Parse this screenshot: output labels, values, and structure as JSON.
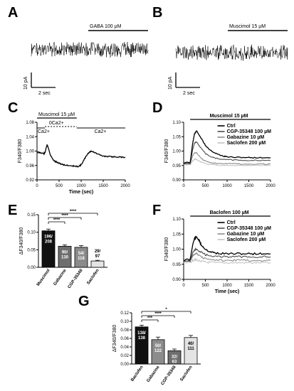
{
  "colors": {
    "black": "#000000",
    "dark_gray": "#4d4d4d",
    "gray": "#8c8c8c",
    "light_gray": "#c4c4c4",
    "bar_black": "#111111",
    "bar_gray1": "#6e6e6e",
    "bar_gray2": "#8a8a8a",
    "bar_light": "#e4e4e4"
  },
  "panel_labels": {
    "A": "A",
    "B": "B",
    "C": "C",
    "D": "D",
    "E": "E",
    "F": "F",
    "G": "G"
  },
  "trace_a": {
    "drug": "GABA 100 µM",
    "scale_y": "10 pA",
    "scale_x": "2 sec"
  },
  "trace_b": {
    "drug": "Muscimol 15 µM",
    "scale_y": "10 pA",
    "scale_x": "2 sec"
  },
  "chart_data": [
    {
      "panel": "C",
      "type": "line",
      "xlabel": "Time (sec)",
      "ylabel": "F340/F380",
      "xlim": [
        0,
        2000
      ],
      "ylim": [
        0.92,
        1.08
      ],
      "xticks": [
        0,
        500,
        1000,
        1500,
        2000
      ],
      "yticks": [
        "0.92",
        "0.96",
        "1.00",
        "1.04",
        "1.08"
      ],
      "annotations": {
        "drug": "Muscimol 15 µM",
        "zero_ca": "0Ca2+",
        "ca_left": "Ca2+",
        "ca_right": "Ca2+"
      },
      "series": [
        {
          "color": "#000000",
          "x": [
            0,
            50,
            100,
            150,
            180,
            200,
            230,
            260,
            300,
            350,
            400,
            450,
            500,
            550,
            600,
            700,
            800,
            850,
            900,
            950,
            1000,
            1050,
            1100,
            1150,
            1200,
            1250,
            1300,
            1400,
            1500,
            1600,
            1700,
            1800,
            1900,
            2000
          ],
          "y": [
            0.997,
            0.996,
            0.995,
            0.993,
            0.995,
            1.005,
            1.018,
            1.008,
            0.99,
            0.978,
            0.972,
            0.969,
            0.966,
            0.964,
            0.962,
            0.96,
            0.959,
            0.958,
            0.957,
            0.958,
            0.962,
            0.972,
            0.983,
            0.993,
            0.998,
            1.0,
            0.996,
            0.99,
            0.986,
            0.985,
            0.984,
            0.984,
            0.983,
            0.983
          ]
        }
      ]
    },
    {
      "panel": "D",
      "type": "line",
      "ylabel": "F340/F380",
      "xlim": [
        0,
        2000
      ],
      "ylim": [
        0.9,
        1.1
      ],
      "xticks": [
        0,
        500,
        1000,
        1500,
        2000
      ],
      "yticks": [
        "0.90",
        "0.95",
        "1.00",
        "1.05",
        "1.10"
      ],
      "annotations": {
        "drug": "Muscimol 15 µM"
      },
      "series": [
        {
          "name": "Ctrl",
          "color": "#000000",
          "x": [
            0,
            150,
            200,
            250,
            300,
            400,
            500,
            600,
            700,
            800,
            900,
            1000,
            1200,
            1400,
            1600,
            1800,
            2000
          ],
          "y": [
            0.96,
            0.96,
            1.02,
            1.06,
            1.07,
            1.045,
            1.02,
            1.005,
            0.995,
            0.988,
            0.983,
            0.98,
            0.978,
            0.978,
            0.977,
            0.977,
            0.977
          ]
        },
        {
          "name": "CGP-35348 100 µM",
          "color": "#4d4d4d",
          "x": [
            0,
            150,
            200,
            250,
            300,
            400,
            500,
            600,
            700,
            800,
            1000,
            1200,
            1400,
            1600,
            1800,
            2000
          ],
          "y": [
            0.958,
            0.958,
            1.0,
            1.028,
            1.032,
            1.01,
            0.992,
            0.982,
            0.977,
            0.973,
            0.97,
            0.969,
            0.968,
            0.968,
            0.967,
            0.967
          ]
        },
        {
          "name": "Gabazine 10 µM",
          "color": "#8c8c8c",
          "x": [
            0,
            150,
            200,
            250,
            300,
            400,
            500,
            600,
            700,
            800,
            1000,
            1200,
            1400,
            1600,
            1800,
            2000
          ],
          "y": [
            0.955,
            0.955,
            0.98,
            0.995,
            0.993,
            0.975,
            0.965,
            0.96,
            0.958,
            0.957,
            0.956,
            0.956,
            0.955,
            0.955,
            0.955,
            0.955
          ]
        },
        {
          "name": "Saclofen 200 µM",
          "color": "#c4c4c4",
          "x": [
            0,
            150,
            200,
            250,
            300,
            400,
            500,
            600,
            700,
            800,
            1000,
            1200,
            1400,
            1600,
            1800,
            2000
          ],
          "y": [
            0.952,
            0.952,
            0.965,
            0.972,
            0.97,
            0.962,
            0.956,
            0.953,
            0.952,
            0.951,
            0.95,
            0.95,
            0.95,
            0.95,
            0.95,
            0.95
          ]
        }
      ]
    },
    {
      "panel": "E",
      "type": "bar",
      "ylabel": "ΔF340/F380",
      "ylim": [
        0,
        0.15
      ],
      "yticks": [
        "0.00",
        "0.05",
        "0.10",
        "0.15"
      ],
      "categories": [
        "Muscimol",
        "Gabazine",
        "CGP-35348",
        "Saclofen"
      ],
      "values": [
        0.104,
        0.06,
        0.057,
        0.018
      ],
      "errors": [
        0.005,
        0.004,
        0.005,
        0.002
      ],
      "bar_colors": [
        "#111111",
        "#6e6e6e",
        "#8a8a8a",
        "#e4e4e4"
      ],
      "bar_labels": [
        [
          "196/",
          "208"
        ],
        [
          "90/",
          "130"
        ],
        [
          "54/",
          "118"
        ],
        [
          "29/",
          "97"
        ]
      ],
      "label_inside": [
        true,
        true,
        true,
        false
      ],
      "significance": [
        {
          "from": 0,
          "to": 3,
          "label": "****"
        },
        {
          "from": 0,
          "to": 2,
          "label": "****"
        },
        {
          "from": 0,
          "to": 1,
          "label": "****"
        }
      ]
    },
    {
      "panel": "F",
      "type": "line",
      "xlabel": "Time (sec)",
      "ylabel": "F340/F380",
      "xlim": [
        0,
        2000
      ],
      "ylim": [
        0.9,
        1.1
      ],
      "xticks": [
        0,
        500,
        1000,
        1500,
        2000
      ],
      "yticks": [
        "0.90",
        "0.95",
        "1.00",
        "1.05",
        "1.10"
      ],
      "annotations": {
        "drug": "Baclofen 100 µM"
      },
      "series": [
        {
          "name": "Ctrl",
          "color": "#000000",
          "x": [
            0,
            150,
            200,
            250,
            300,
            350,
            400,
            500,
            600,
            700,
            800,
            1000,
            1200,
            1400,
            1600,
            1800,
            2000
          ],
          "y": [
            0.965,
            0.965,
            1.01,
            1.035,
            1.04,
            1.03,
            1.015,
            1.0,
            0.992,
            0.988,
            0.986,
            0.985,
            0.985,
            0.985,
            0.985,
            0.985,
            0.985
          ]
        },
        {
          "name": "CGP-35348 100 µM",
          "color": "#4d4d4d",
          "x": [
            0,
            150,
            200,
            250,
            300,
            400,
            500,
            600,
            800,
            1000,
            1200,
            1400,
            1600,
            1800,
            2000
          ],
          "y": [
            0.962,
            0.962,
            0.985,
            0.998,
            1.0,
            0.99,
            0.982,
            0.978,
            0.976,
            0.975,
            0.975,
            0.975,
            0.975,
            0.975,
            0.975
          ]
        },
        {
          "name": "Gabazine 10 µM",
          "color": "#8c8c8c",
          "x": [
            0,
            150,
            200,
            250,
            300,
            400,
            500,
            600,
            800,
            1000,
            1200,
            1400,
            1600,
            1800,
            2000
          ],
          "y": [
            0.96,
            0.96,
            0.975,
            0.985,
            0.985,
            0.975,
            0.968,
            0.965,
            0.964,
            0.963,
            0.963,
            0.963,
            0.963,
            0.963,
            0.963
          ]
        },
        {
          "name": "Saclofen 200 µM",
          "color": "#c4c4c4",
          "x": [
            0,
            150,
            200,
            250,
            300,
            400,
            500,
            600,
            800,
            1000,
            1200,
            1400,
            1600,
            1800,
            2000
          ],
          "y": [
            0.955,
            0.955,
            0.962,
            0.965,
            0.964,
            0.96,
            0.957,
            0.956,
            0.955,
            0.955,
            0.955,
            0.955,
            0.955,
            0.955,
            0.955
          ]
        }
      ]
    },
    {
      "panel": "G",
      "type": "bar",
      "ylabel": "ΔF340/F380",
      "ylim": [
        0,
        0.12
      ],
      "yticks": [
        "0.00",
        "0.02",
        "0.04",
        "0.06",
        "0.08",
        "0.10",
        "0.12"
      ],
      "categories": [
        "Baclofen",
        "Gabazine",
        "CGP-35348",
        "Saclofen"
      ],
      "values": [
        0.087,
        0.057,
        0.031,
        0.062
      ],
      "errors": [
        0.004,
        0.006,
        0.004,
        0.005
      ],
      "bar_colors": [
        "#111111",
        "#8c8c8c",
        "#6e6e6e",
        "#e4e4e4"
      ],
      "bar_labels": [
        [
          "138/",
          "138"
        ],
        [
          "50/",
          "122"
        ],
        [
          "32/",
          "63"
        ],
        [
          "40/",
          "111"
        ]
      ],
      "label_inside": [
        true,
        true,
        true,
        true
      ],
      "significance": [
        {
          "from": 0,
          "to": 3,
          "label": "*"
        },
        {
          "from": 0,
          "to": 2,
          "label": "****"
        },
        {
          "from": 0,
          "to": 1,
          "label": "***"
        }
      ]
    }
  ]
}
